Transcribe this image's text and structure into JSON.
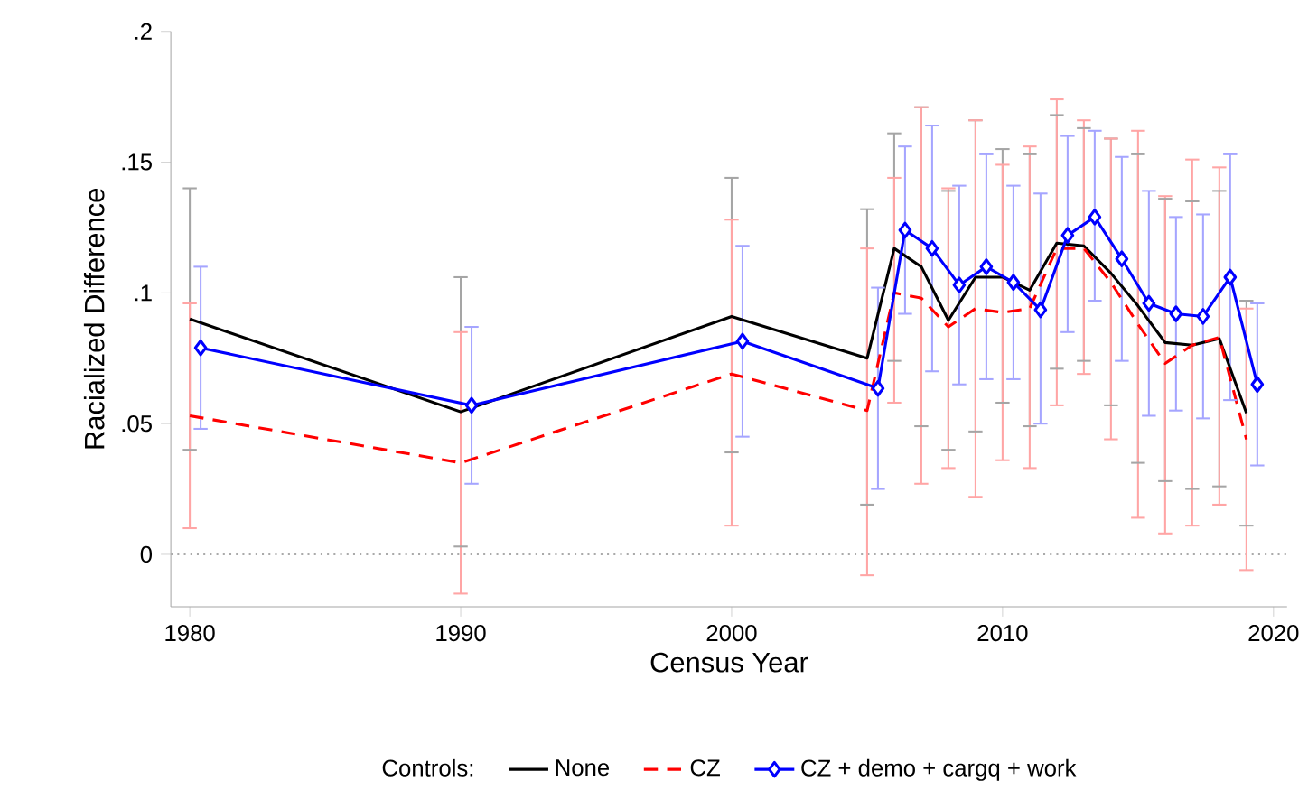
{
  "chart_data": {
    "type": "line",
    "xlabel": "Census Year",
    "ylabel": "Racialized Difference",
    "legend_title": "Controls:",
    "x": [
      1980,
      1990,
      2000,
      2005,
      2006,
      2007,
      2008,
      2009,
      2010,
      2011,
      2012,
      2013,
      2014,
      2015,
      2016,
      2017,
      2018,
      2019
    ],
    "xlim": [
      1979.3,
      2020.5
    ],
    "xticks": [
      1980,
      1990,
      2000,
      2010,
      2020
    ],
    "ylim": [
      -0.02,
      0.2
    ],
    "yticks": [
      {
        "value": 0,
        "label": "0"
      },
      {
        "value": 0.05,
        "label": ".05"
      },
      {
        "value": 0.1,
        "label": ".1"
      },
      {
        "value": 0.15,
        "label": ".15"
      },
      {
        "value": 0.2,
        "label": ".2"
      }
    ],
    "grid": false,
    "legend": "bottom",
    "ref_lines": [
      {
        "axis": "y",
        "value": 0,
        "color": "#aaaaaa",
        "line_style": "dotted"
      }
    ],
    "series": [
      {
        "name": "None",
        "color": "#000000",
        "line_style": "solid",
        "marker": "none",
        "values": [
          0.09,
          0.0545,
          0.091,
          0.075,
          0.117,
          0.11,
          0.0895,
          0.106,
          0.106,
          0.101,
          0.119,
          0.118,
          0.1075,
          0.095,
          0.081,
          0.08,
          0.0825,
          0.054
        ],
        "errors": [
          [
            0.04,
            0.14
          ],
          [
            0.003,
            0.106
          ],
          [
            0.039,
            0.144
          ],
          [
            0.019,
            0.132
          ],
          [
            0.074,
            0.161
          ],
          [
            0.049,
            0.171
          ],
          [
            0.04,
            0.139
          ],
          [
            0.047,
            0.166
          ],
          [
            0.058,
            0.155
          ],
          [
            0.049,
            0.153
          ],
          [
            0.071,
            0.168
          ],
          [
            0.074,
            0.163
          ],
          [
            0.057,
            0.159
          ],
          [
            0.035,
            0.153
          ],
          [
            0.028,
            0.136
          ],
          [
            0.025,
            0.135
          ],
          [
            0.026,
            0.139
          ],
          [
            0.011,
            0.097
          ]
        ]
      },
      {
        "name": "CZ",
        "color": "#ff0000",
        "line_style": "dashed",
        "marker": "none",
        "values": [
          0.053,
          0.035,
          0.069,
          0.055,
          0.1,
          0.098,
          0.087,
          0.094,
          0.0925,
          0.094,
          0.117,
          0.117,
          0.104,
          0.088,
          0.073,
          0.08,
          0.083,
          0.044
        ],
        "errors": [
          [
            0.01,
            0.096
          ],
          [
            -0.015,
            0.085
          ],
          [
            0.011,
            0.128
          ],
          [
            -0.008,
            0.117
          ],
          [
            0.058,
            0.144
          ],
          [
            0.027,
            0.171
          ],
          [
            0.033,
            0.14
          ],
          [
            0.022,
            0.166
          ],
          [
            0.036,
            0.149
          ],
          [
            0.033,
            0.156
          ],
          [
            0.057,
            0.174
          ],
          [
            0.069,
            0.166
          ],
          [
            0.044,
            0.159
          ],
          [
            0.014,
            0.162
          ],
          [
            0.008,
            0.137
          ],
          [
            0.011,
            0.151
          ],
          [
            0.019,
            0.148
          ],
          [
            -0.006,
            0.094
          ]
        ]
      },
      {
        "name": "CZ + demo + cargq + work",
        "color": "#0000ff",
        "line_style": "solid",
        "marker": "diamond",
        "x": [
          1980.4,
          1990.4,
          2000.4,
          2005.4,
          2006.4,
          2007.4,
          2008.4,
          2009.4,
          2010.4,
          2011.4,
          2012.4,
          2013.4,
          2014.4,
          2015.4,
          2016.4,
          2017.4,
          2018.4,
          2019.4
        ],
        "values": [
          0.079,
          0.057,
          0.0815,
          0.0635,
          0.124,
          0.117,
          0.103,
          0.11,
          0.104,
          0.0935,
          0.122,
          0.129,
          0.113,
          0.096,
          0.092,
          0.091,
          0.106,
          0.065
        ],
        "errors": [
          [
            0.048,
            0.11
          ],
          [
            0.027,
            0.087
          ],
          [
            0.045,
            0.118
          ],
          [
            0.025,
            0.102
          ],
          [
            0.092,
            0.156
          ],
          [
            0.07,
            0.164
          ],
          [
            0.065,
            0.141
          ],
          [
            0.067,
            0.153
          ],
          [
            0.067,
            0.141
          ],
          [
            0.05,
            0.138
          ],
          [
            0.085,
            0.16
          ],
          [
            0.097,
            0.162
          ],
          [
            0.074,
            0.152
          ],
          [
            0.053,
            0.139
          ],
          [
            0.055,
            0.129
          ],
          [
            0.052,
            0.13
          ],
          [
            0.059,
            0.153
          ],
          [
            0.034,
            0.096
          ]
        ]
      }
    ]
  }
}
